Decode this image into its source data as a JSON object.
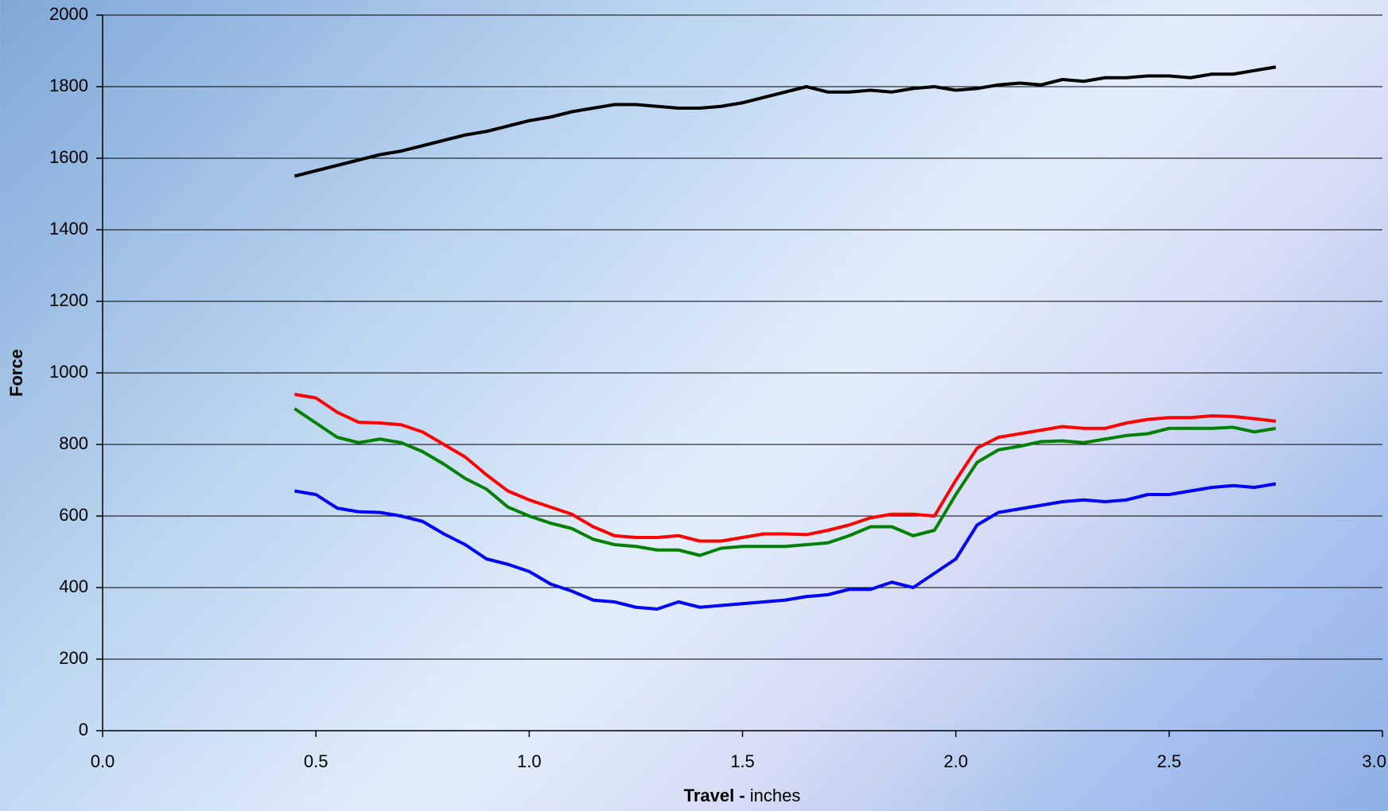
{
  "chart_data": {
    "type": "line",
    "y_label": "Force",
    "x_label_bold": "Travel -",
    "x_label_unit": "inches",
    "x": [
      0.45,
      0.5,
      0.55,
      0.6,
      0.65,
      0.7,
      0.75,
      0.8,
      0.85,
      0.9,
      0.95,
      1.0,
      1.05,
      1.1,
      1.15,
      1.2,
      1.25,
      1.3,
      1.35,
      1.4,
      1.45,
      1.5,
      1.55,
      1.6,
      1.65,
      1.7,
      1.75,
      1.8,
      1.85,
      1.9,
      1.95,
      2.0,
      2.05,
      2.1,
      2.15,
      2.2,
      2.25,
      2.3,
      2.35,
      2.4,
      2.45,
      2.5,
      2.55,
      2.6,
      2.65,
      2.7,
      2.75
    ],
    "series": [
      {
        "color": "#000000",
        "values": [
          1550,
          1565,
          1580,
          1595,
          1610,
          1620,
          1635,
          1650,
          1665,
          1675,
          1690,
          1705,
          1715,
          1730,
          1740,
          1750,
          1750,
          1745,
          1740,
          1740,
          1745,
          1755,
          1770,
          1785,
          1800,
          1785,
          1785,
          1790,
          1785,
          1795,
          1800,
          1790,
          1795,
          1805,
          1810,
          1805,
          1820,
          1815,
          1825,
          1825,
          1830,
          1830,
          1825,
          1835,
          1835,
          1845,
          1855
        ]
      },
      {
        "color": "#ff0000",
        "values": [
          940,
          930,
          890,
          862,
          860,
          855,
          835,
          800,
          765,
          715,
          670,
          645,
          625,
          605,
          570,
          545,
          540,
          540,
          545,
          530,
          530,
          540,
          550,
          550,
          548,
          560,
          575,
          595,
          605,
          605,
          600,
          700,
          790,
          820,
          830,
          840,
          850,
          845,
          845,
          860,
          870,
          875,
          875,
          880,
          878,
          872,
          865
        ]
      },
      {
        "color": "#008000",
        "values": [
          900,
          860,
          820,
          805,
          815,
          805,
          780,
          745,
          705,
          675,
          625,
          600,
          580,
          565,
          535,
          520,
          515,
          505,
          505,
          490,
          510,
          515,
          515,
          515,
          520,
          525,
          545,
          570,
          570,
          545,
          560,
          660,
          750,
          785,
          795,
          808,
          810,
          805,
          815,
          825,
          830,
          845,
          845,
          845,
          848,
          835,
          845
        ]
      },
      {
        "color": "#0000ff",
        "values": [
          670,
          660,
          622,
          612,
          610,
          600,
          585,
          550,
          520,
          480,
          465,
          445,
          410,
          390,
          365,
          360,
          345,
          340,
          360,
          345,
          350,
          355,
          360,
          365,
          375,
          380,
          395,
          395,
          415,
          400,
          440,
          480,
          575,
          610,
          620,
          630,
          640,
          645,
          640,
          645,
          660,
          660,
          670,
          680,
          685,
          680,
          690
        ]
      }
    ],
    "xlim": [
      0,
      3.0
    ],
    "xticks": [
      {
        "value": 0,
        "label": "0.0"
      },
      0.5,
      {
        "value": 1,
        "label": "1.0"
      },
      1.5,
      {
        "value": 2,
        "label": "2.0"
      },
      2.5,
      {
        "value": 3,
        "label": "3.0"
      }
    ],
    "ylim": [
      0,
      2000
    ],
    "yticks": [
      0,
      200,
      400,
      600,
      800,
      1000,
      1200,
      1400,
      1600,
      1800,
      2000
    ],
    "grid": true
  }
}
